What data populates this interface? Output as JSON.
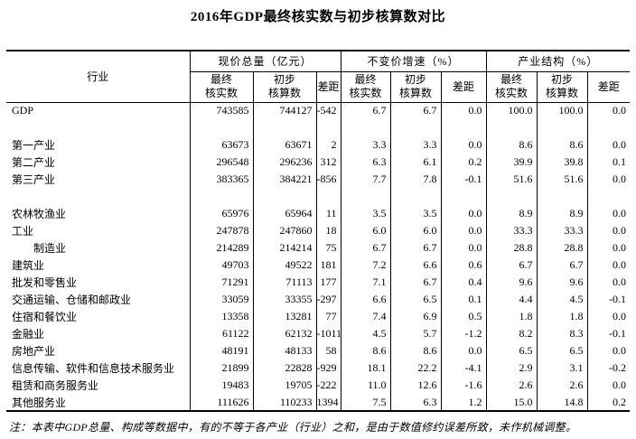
{
  "title": "2016年GDP最终核实数与初步核算数对比",
  "table": {
    "industry_header": "行业",
    "groups": [
      {
        "label": "现价总量（亿元）"
      },
      {
        "label": "不变价增速（%）"
      },
      {
        "label": "产业结构（%）"
      }
    ],
    "sub_headers": [
      "最终\n核实数",
      "初步\n核算数",
      "差距"
    ],
    "rows": [
      {
        "label": "GDP",
        "indent": 0,
        "values": [
          "743585",
          "744127",
          "-542",
          "6.7",
          "6.7",
          "0.0",
          "100.0",
          "100.0",
          "0.0"
        ]
      },
      {
        "spacer": true
      },
      {
        "label": "第一产业",
        "indent": 0,
        "values": [
          "63673",
          "63671",
          "2",
          "3.3",
          "3.3",
          "0.0",
          "8.6",
          "8.6",
          "0.0"
        ]
      },
      {
        "label": "第二产业",
        "indent": 0,
        "values": [
          "296548",
          "296236",
          "312",
          "6.3",
          "6.1",
          "0.2",
          "39.9",
          "39.8",
          "0.1"
        ]
      },
      {
        "label": "第三产业",
        "indent": 0,
        "values": [
          "383365",
          "384221",
          "-856",
          "7.7",
          "7.8",
          "-0.1",
          "51.6",
          "51.6",
          "0.0"
        ]
      },
      {
        "spacer": true
      },
      {
        "label": "农林牧渔业",
        "indent": 0,
        "values": [
          "65976",
          "65964",
          "11",
          "3.5",
          "3.5",
          "0.0",
          "8.9",
          "8.9",
          "0.0"
        ]
      },
      {
        "label": "工业",
        "indent": 0,
        "values": [
          "247878",
          "247860",
          "18",
          "6.0",
          "6.0",
          "0.0",
          "33.3",
          "33.3",
          "0.0"
        ]
      },
      {
        "label": "制造业",
        "indent": 1,
        "values": [
          "214289",
          "214214",
          "75",
          "6.7",
          "6.7",
          "0.0",
          "28.8",
          "28.8",
          "0.0"
        ]
      },
      {
        "label": "建筑业",
        "indent": 0,
        "values": [
          "49703",
          "49522",
          "181",
          "7.2",
          "6.6",
          "0.6",
          "6.7",
          "6.7",
          "0.0"
        ]
      },
      {
        "label": "批发和零售业",
        "indent": 0,
        "values": [
          "71291",
          "71113",
          "177",
          "7.1",
          "6.7",
          "0.4",
          "9.6",
          "9.6",
          "0.0"
        ]
      },
      {
        "label": "交通运输、仓储和邮政业",
        "indent": 0,
        "values": [
          "33059",
          "33355",
          "-297",
          "6.6",
          "6.5",
          "0.1",
          "4.4",
          "4.5",
          "-0.1"
        ]
      },
      {
        "label": "住宿和餐饮业",
        "indent": 0,
        "values": [
          "13358",
          "13281",
          "77",
          "7.4",
          "6.9",
          "0.5",
          "1.8",
          "1.8",
          "0.0"
        ]
      },
      {
        "label": "金融业",
        "indent": 0,
        "values": [
          "61122",
          "62132",
          "-1011",
          "4.5",
          "5.7",
          "-1.2",
          "8.2",
          "8.3",
          "-0.1"
        ]
      },
      {
        "label": "房地产业",
        "indent": 0,
        "values": [
          "48191",
          "48133",
          "58",
          "8.6",
          "8.6",
          "0.0",
          "6.5",
          "6.5",
          "0.0"
        ]
      },
      {
        "label": "信息传输、软件和信息技术服务业",
        "indent": 0,
        "values": [
          "21899",
          "22828",
          "-929",
          "18.1",
          "22.2",
          "-4.1",
          "2.9",
          "3.1",
          "-0.2"
        ]
      },
      {
        "label": "租赁和商务服务业",
        "indent": 0,
        "values": [
          "19483",
          "19705",
          "-222",
          "11.0",
          "12.6",
          "-1.6",
          "2.6",
          "2.6",
          "0.0"
        ]
      },
      {
        "label": "其他服务业",
        "indent": 0,
        "values": [
          "111626",
          "110233",
          "1394",
          "7.5",
          "6.3",
          "1.2",
          "15.0",
          "14.8",
          "0.2"
        ]
      }
    ]
  },
  "note": "注：本表中GDP总量、构成等数据中，有的不等于各产业（行业）之和，是由于数值修约误差所致，未作机械调整。"
}
